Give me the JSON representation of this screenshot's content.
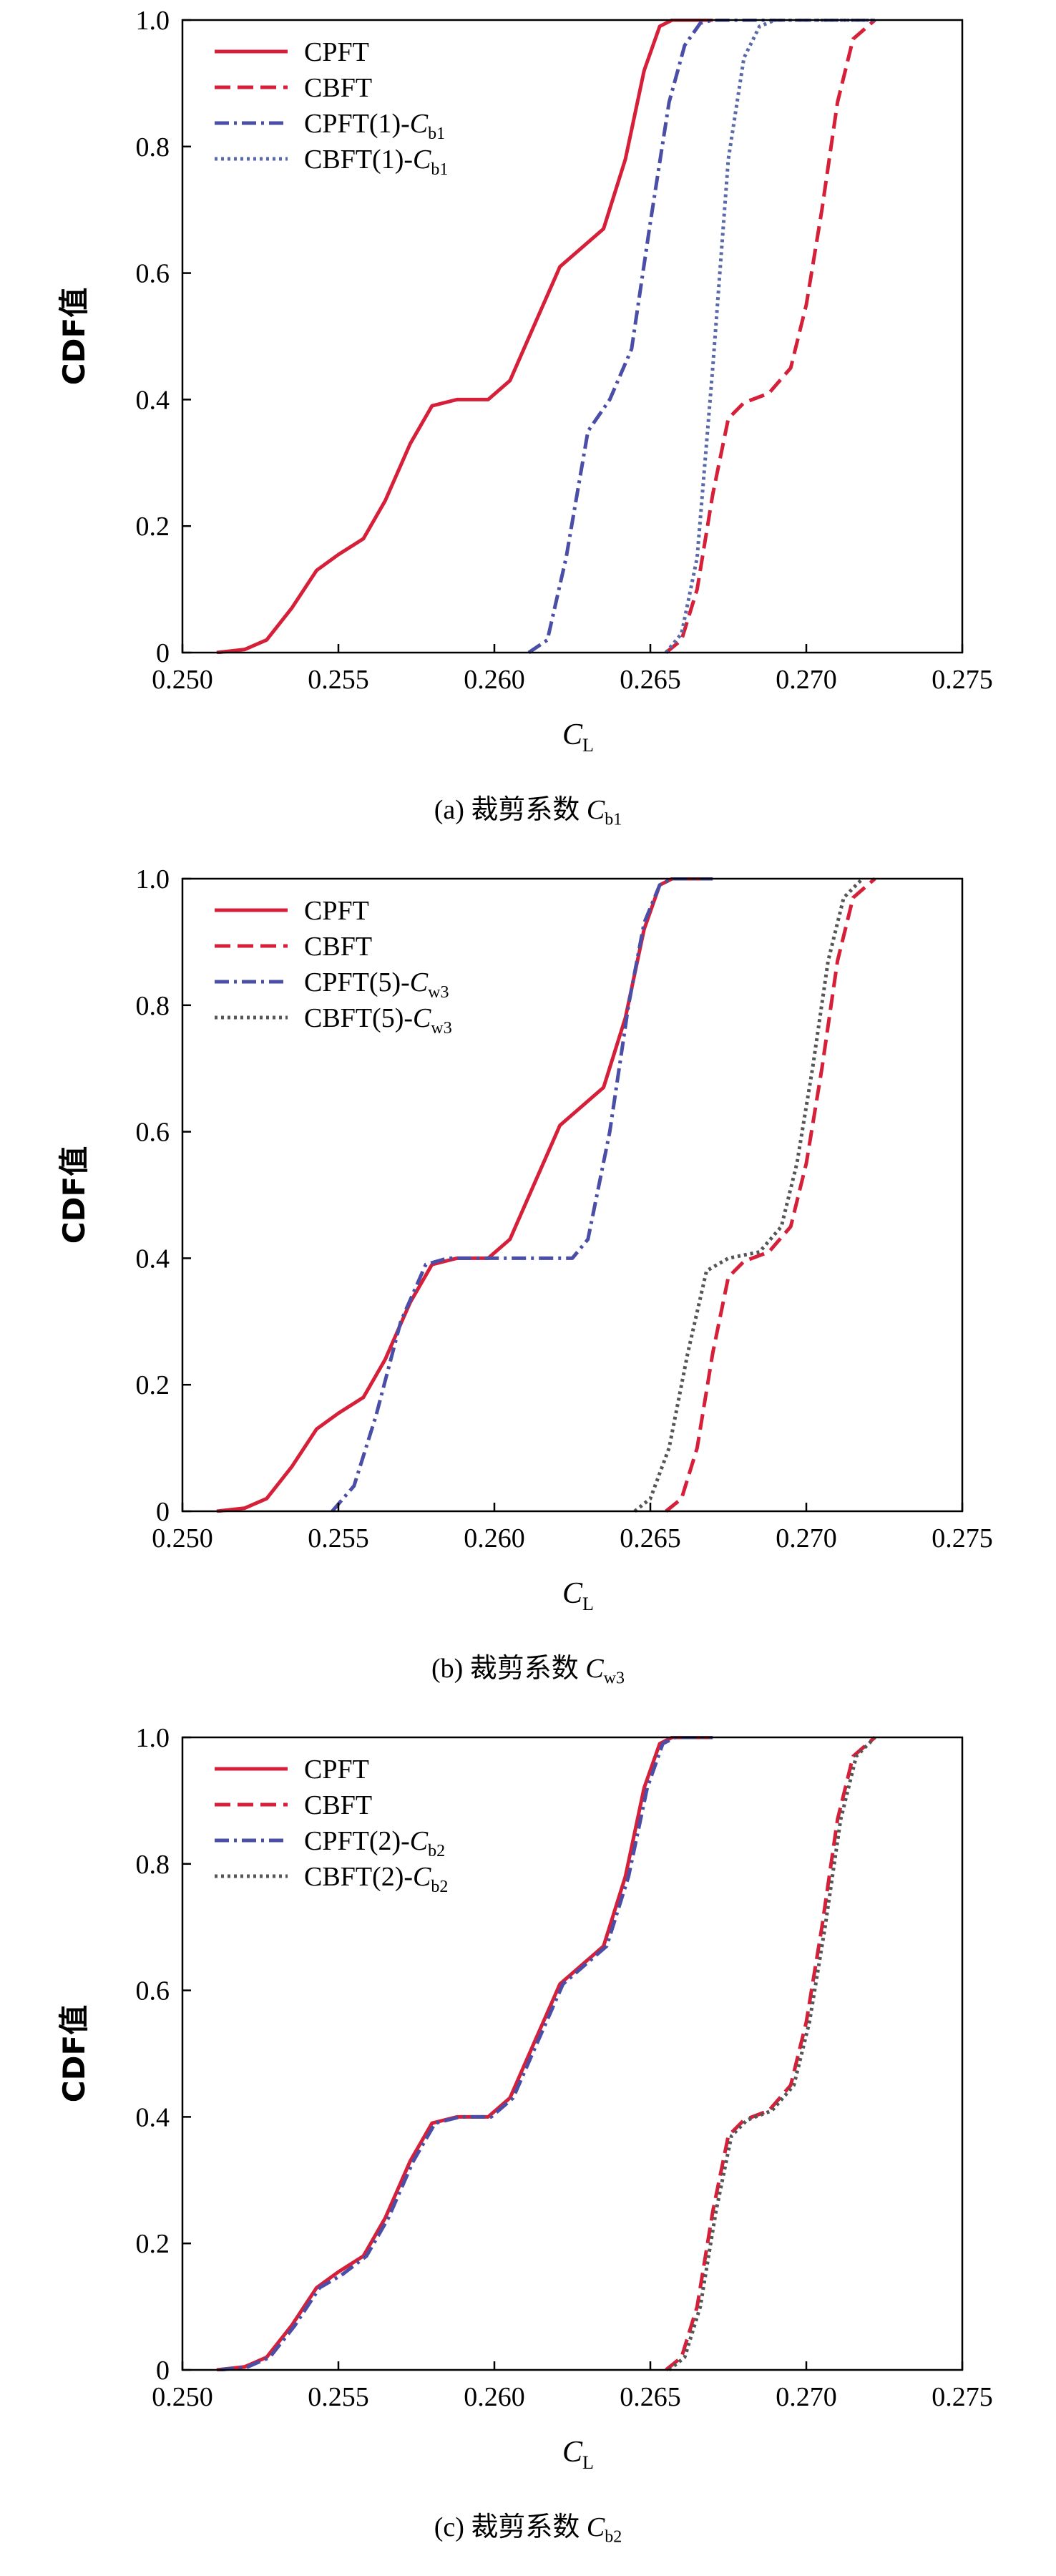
{
  "chart_data": [
    {
      "type": "line",
      "caption": {
        "prefix": "(a)",
        "text": "裁剪系数",
        "var": "C",
        "sub": "b1"
      },
      "xlabel": {
        "var": "C",
        "sub": "L"
      },
      "ylabel": "CDF值",
      "xlim": [
        0.25,
        0.275
      ],
      "ylim": [
        0,
        1.0
      ],
      "xticks": [
        "0.250",
        "0.255",
        "0.260",
        "0.265",
        "0.270",
        "0.275"
      ],
      "yticks": [
        "0",
        "0.2",
        "0.4",
        "0.6",
        "0.8",
        "1.0"
      ],
      "legend_position": "top-left",
      "series": [
        {
          "name": "CPFT",
          "label_main": "CPFT",
          "label_var": "",
          "label_sub": "",
          "color": "#d6203a",
          "dash": "solid",
          "points": [
            [
              0.2511,
              0
            ],
            [
              0.252,
              0.005
            ],
            [
              0.2527,
              0.02
            ],
            [
              0.2535,
              0.07
            ],
            [
              0.2543,
              0.13
            ],
            [
              0.255,
              0.155
            ],
            [
              0.2558,
              0.18
            ],
            [
              0.2565,
              0.24
            ],
            [
              0.2573,
              0.33
            ],
            [
              0.258,
              0.39
            ],
            [
              0.2588,
              0.4
            ],
            [
              0.2598,
              0.4
            ],
            [
              0.2605,
              0.43
            ],
            [
              0.2613,
              0.52
            ],
            [
              0.2621,
              0.61
            ],
            [
              0.2628,
              0.64
            ],
            [
              0.2635,
              0.67
            ],
            [
              0.2642,
              0.78
            ],
            [
              0.2648,
              0.92
            ],
            [
              0.2653,
              0.99
            ],
            [
              0.2657,
              1.0
            ],
            [
              0.267,
              1.0
            ]
          ]
        },
        {
          "name": "CBFT",
          "label_main": "CBFT",
          "label_var": "",
          "label_sub": "",
          "color": "#d6203a",
          "dash": "dashed",
          "points": [
            [
              0.2655,
              0
            ],
            [
              0.266,
              0.02
            ],
            [
              0.2665,
              0.1
            ],
            [
              0.267,
              0.25
            ],
            [
              0.2675,
              0.37
            ],
            [
              0.268,
              0.395
            ],
            [
              0.2688,
              0.41
            ],
            [
              0.2695,
              0.45
            ],
            [
              0.27,
              0.55
            ],
            [
              0.2705,
              0.7
            ],
            [
              0.271,
              0.87
            ],
            [
              0.2715,
              0.97
            ],
            [
              0.2722,
              1.0
            ]
          ]
        },
        {
          "name": "CPFT(1)-Cb1",
          "label_main": "CPFT(1)-",
          "label_var": "C",
          "label_sub": "b1",
          "color": "#4a4ea6",
          "dash": "dashdot",
          "points": [
            [
              0.2611,
              0
            ],
            [
              0.2617,
              0.02
            ],
            [
              0.2623,
              0.15
            ],
            [
              0.263,
              0.35
            ],
            [
              0.2637,
              0.4
            ],
            [
              0.2644,
              0.48
            ],
            [
              0.265,
              0.68
            ],
            [
              0.2656,
              0.87
            ],
            [
              0.2661,
              0.96
            ],
            [
              0.2666,
              0.995
            ],
            [
              0.267,
              1.0
            ],
            [
              0.2722,
              1.0
            ]
          ]
        },
        {
          "name": "CBFT(1)-Cb1",
          "label_main": "CBFT(1)-",
          "label_var": "C",
          "label_sub": "b1",
          "color": "#5a6aa8",
          "dash": "dotted",
          "points": [
            [
              0.2655,
              0
            ],
            [
              0.266,
              0.03
            ],
            [
              0.2665,
              0.15
            ],
            [
              0.267,
              0.45
            ],
            [
              0.2675,
              0.78
            ],
            [
              0.268,
              0.94
            ],
            [
              0.2685,
              0.99
            ],
            [
              0.269,
              1.0
            ],
            [
              0.2722,
              1.0
            ]
          ]
        }
      ]
    },
    {
      "type": "line",
      "caption": {
        "prefix": "(b)",
        "text": "裁剪系数",
        "var": "C",
        "sub": "w3"
      },
      "xlabel": {
        "var": "C",
        "sub": "L"
      },
      "ylabel": "CDF值",
      "xlim": [
        0.25,
        0.275
      ],
      "ylim": [
        0,
        1.0
      ],
      "xticks": [
        "0.250",
        "0.255",
        "0.260",
        "0.265",
        "0.270",
        "0.275"
      ],
      "yticks": [
        "0",
        "0.2",
        "0.4",
        "0.6",
        "0.8",
        "1.0"
      ],
      "legend_position": "top-left",
      "series": [
        {
          "name": "CPFT",
          "label_main": "CPFT",
          "label_var": "",
          "label_sub": "",
          "color": "#d6203a",
          "dash": "solid",
          "points": [
            [
              0.2511,
              0
            ],
            [
              0.252,
              0.005
            ],
            [
              0.2527,
              0.02
            ],
            [
              0.2535,
              0.07
            ],
            [
              0.2543,
              0.13
            ],
            [
              0.255,
              0.155
            ],
            [
              0.2558,
              0.18
            ],
            [
              0.2565,
              0.24
            ],
            [
              0.2573,
              0.33
            ],
            [
              0.258,
              0.39
            ],
            [
              0.2588,
              0.4
            ],
            [
              0.2598,
              0.4
            ],
            [
              0.2605,
              0.43
            ],
            [
              0.2613,
              0.52
            ],
            [
              0.2621,
              0.61
            ],
            [
              0.2628,
              0.64
            ],
            [
              0.2635,
              0.67
            ],
            [
              0.2642,
              0.78
            ],
            [
              0.2648,
              0.92
            ],
            [
              0.2653,
              0.99
            ],
            [
              0.2657,
              1.0
            ],
            [
              0.267,
              1.0
            ]
          ]
        },
        {
          "name": "CBFT",
          "label_main": "CBFT",
          "label_var": "",
          "label_sub": "",
          "color": "#d6203a",
          "dash": "dashed",
          "points": [
            [
              0.2655,
              0
            ],
            [
              0.266,
              0.02
            ],
            [
              0.2665,
              0.1
            ],
            [
              0.267,
              0.25
            ],
            [
              0.2675,
              0.37
            ],
            [
              0.268,
              0.395
            ],
            [
              0.2688,
              0.41
            ],
            [
              0.2695,
              0.45
            ],
            [
              0.27,
              0.55
            ],
            [
              0.2705,
              0.7
            ],
            [
              0.271,
              0.87
            ],
            [
              0.2715,
              0.97
            ],
            [
              0.2722,
              1.0
            ]
          ]
        },
        {
          "name": "CPFT(5)-Cw3",
          "label_main": "CPFT(5)-",
          "label_var": "C",
          "label_sub": "w3",
          "color": "#4a4ea6",
          "dash": "dashdot",
          "points": [
            [
              0.2548,
              0
            ],
            [
              0.2555,
              0.04
            ],
            [
              0.2562,
              0.15
            ],
            [
              0.257,
              0.3
            ],
            [
              0.2578,
              0.39
            ],
            [
              0.2585,
              0.4
            ],
            [
              0.2625,
              0.4
            ],
            [
              0.263,
              0.43
            ],
            [
              0.2637,
              0.6
            ],
            [
              0.2643,
              0.8
            ],
            [
              0.2648,
              0.93
            ],
            [
              0.2653,
              0.99
            ],
            [
              0.2657,
              1.0
            ],
            [
              0.267,
              1.0
            ]
          ]
        },
        {
          "name": "CBFT(5)-Cw3",
          "label_main": "CBFT(5)-",
          "label_var": "C",
          "label_sub": "w3",
          "color": "#555555",
          "dash": "dotted",
          "points": [
            [
              0.2645,
              0
            ],
            [
              0.265,
              0.02
            ],
            [
              0.2656,
              0.1
            ],
            [
              0.2662,
              0.25
            ],
            [
              0.2668,
              0.38
            ],
            [
              0.2675,
              0.4
            ],
            [
              0.2685,
              0.41
            ],
            [
              0.2692,
              0.45
            ],
            [
              0.2697,
              0.55
            ],
            [
              0.2702,
              0.7
            ],
            [
              0.2707,
              0.87
            ],
            [
              0.2712,
              0.97
            ],
            [
              0.2718,
              1.0
            ]
          ]
        }
      ]
    },
    {
      "type": "line",
      "caption": {
        "prefix": "(c)",
        "text": "裁剪系数",
        "var": "C",
        "sub": "b2"
      },
      "xlabel": {
        "var": "C",
        "sub": "L"
      },
      "ylabel": "CDF值",
      "xlim": [
        0.25,
        0.275
      ],
      "ylim": [
        0,
        1.0
      ],
      "xticks": [
        "0.250",
        "0.255",
        "0.260",
        "0.265",
        "0.270",
        "0.275"
      ],
      "yticks": [
        "0",
        "0.2",
        "0.4",
        "0.6",
        "0.8",
        "1.0"
      ],
      "legend_position": "top-left",
      "series": [
        {
          "name": "CPFT",
          "label_main": "CPFT",
          "label_var": "",
          "label_sub": "",
          "color": "#d6203a",
          "dash": "solid",
          "points": [
            [
              0.2511,
              0
            ],
            [
              0.252,
              0.005
            ],
            [
              0.2527,
              0.02
            ],
            [
              0.2535,
              0.07
            ],
            [
              0.2543,
              0.13
            ],
            [
              0.255,
              0.155
            ],
            [
              0.2558,
              0.18
            ],
            [
              0.2565,
              0.24
            ],
            [
              0.2573,
              0.33
            ],
            [
              0.258,
              0.39
            ],
            [
              0.2588,
              0.4
            ],
            [
              0.2598,
              0.4
            ],
            [
              0.2605,
              0.43
            ],
            [
              0.2613,
              0.52
            ],
            [
              0.2621,
              0.61
            ],
            [
              0.2628,
              0.64
            ],
            [
              0.2635,
              0.67
            ],
            [
              0.2642,
              0.78
            ],
            [
              0.2648,
              0.92
            ],
            [
              0.2653,
              0.99
            ],
            [
              0.2657,
              1.0
            ],
            [
              0.267,
              1.0
            ]
          ]
        },
        {
          "name": "CBFT",
          "label_main": "CBFT",
          "label_var": "",
          "label_sub": "",
          "color": "#d6203a",
          "dash": "dashed",
          "points": [
            [
              0.2655,
              0
            ],
            [
              0.266,
              0.02
            ],
            [
              0.2665,
              0.1
            ],
            [
              0.267,
              0.25
            ],
            [
              0.2675,
              0.37
            ],
            [
              0.268,
              0.395
            ],
            [
              0.2688,
              0.41
            ],
            [
              0.2695,
              0.45
            ],
            [
              0.27,
              0.55
            ],
            [
              0.2705,
              0.7
            ],
            [
              0.271,
              0.87
            ],
            [
              0.2715,
              0.97
            ],
            [
              0.2722,
              1.0
            ]
          ]
        },
        {
          "name": "CPFT(2)-Cb2",
          "label_main": "CPFT(2)-",
          "label_var": "C",
          "label_sub": "b2",
          "color": "#4a4ea6",
          "dash": "dashdot",
          "points": [
            [
              0.2512,
              0
            ],
            [
              0.2521,
              0.005
            ],
            [
              0.2528,
              0.02
            ],
            [
              0.2536,
              0.07
            ],
            [
              0.2544,
              0.13
            ],
            [
              0.2551,
              0.15
            ],
            [
              0.2559,
              0.18
            ],
            [
              0.2566,
              0.24
            ],
            [
              0.2574,
              0.33
            ],
            [
              0.2581,
              0.39
            ],
            [
              0.2589,
              0.4
            ],
            [
              0.2599,
              0.4
            ],
            [
              0.2606,
              0.43
            ],
            [
              0.2614,
              0.52
            ],
            [
              0.2622,
              0.61
            ],
            [
              0.2629,
              0.64
            ],
            [
              0.2636,
              0.67
            ],
            [
              0.2643,
              0.78
            ],
            [
              0.2649,
              0.92
            ],
            [
              0.2654,
              0.99
            ],
            [
              0.2658,
              1.0
            ],
            [
              0.267,
              1.0
            ]
          ]
        },
        {
          "name": "CBFT(2)-Cb2",
          "label_main": "CBFT(2)-",
          "label_var": "C",
          "label_sub": "b2",
          "color": "#555555",
          "dash": "dotted",
          "points": [
            [
              0.2656,
              0
            ],
            [
              0.2661,
              0.02
            ],
            [
              0.2666,
              0.1
            ],
            [
              0.2671,
              0.25
            ],
            [
              0.2676,
              0.37
            ],
            [
              0.2681,
              0.395
            ],
            [
              0.2689,
              0.41
            ],
            [
              0.2696,
              0.45
            ],
            [
              0.2701,
              0.55
            ],
            [
              0.2706,
              0.7
            ],
            [
              0.2711,
              0.87
            ],
            [
              0.2716,
              0.97
            ],
            [
              0.2722,
              1.0
            ]
          ]
        }
      ]
    }
  ]
}
